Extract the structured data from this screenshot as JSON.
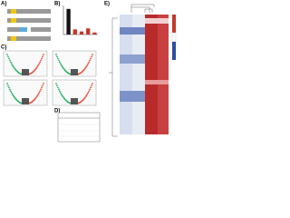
{
  "panels": [
    {
      "label": "A)"
    },
    {
      "label": "B)",
      "chart": {
        "type": "bar",
        "values": [
          100,
          20,
          12,
          24,
          8
        ],
        "colors": [
          "#111111",
          "#c0392b",
          "#c0392b",
          "#c0392b",
          "#c0392b"
        ],
        "ylim": [
          0,
          110
        ]
      }
    },
    {
      "label": "C)"
    },
    {
      "label": "D)"
    },
    {
      "label": "E)"
    }
  ]
}
